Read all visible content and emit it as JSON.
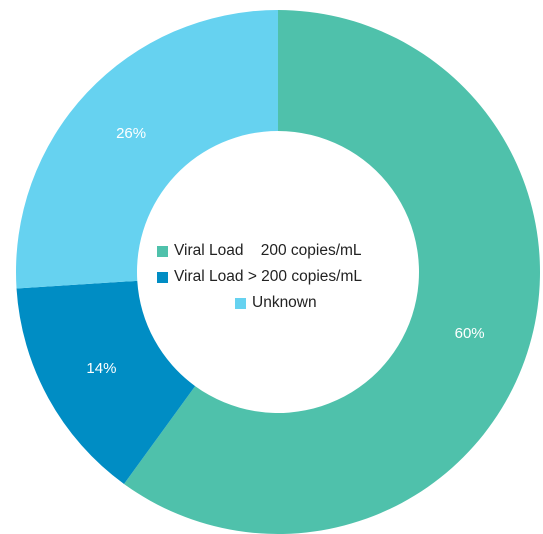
{
  "chart_data": {
    "type": "pie",
    "donut": true,
    "categories": [
      "Viral Load    200 copies/mL",
      "Viral Load > 200 copies/mL",
      "Unknown"
    ],
    "values": [
      60,
      14,
      26
    ],
    "value_labels": [
      "60%",
      "14%",
      "26%"
    ],
    "colors": [
      "#4fc1ab",
      "#008dc4",
      "#66d2f0"
    ],
    "legend_placement": "center"
  }
}
